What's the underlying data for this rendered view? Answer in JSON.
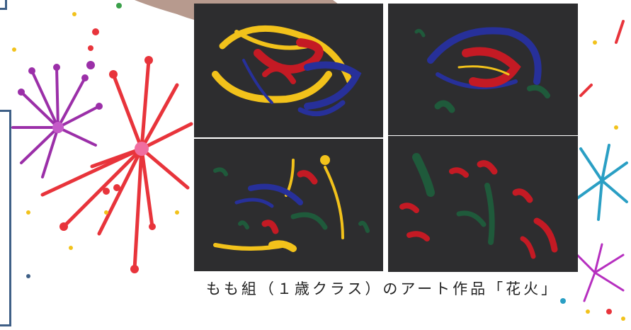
{
  "caption": "もも組（１歳クラス）のアート作品「花火」",
  "colors": {
    "frame": "#3e5f86",
    "paper": "#2d2d2f",
    "paint_yellow": "#f2c21b",
    "paint_red": "#c41a24",
    "paint_blue": "#27309a",
    "paint_green": "#1f5a3b"
  },
  "photos": [
    {
      "name": "artwork-photo-1"
    },
    {
      "name": "artwork-photo-2"
    },
    {
      "name": "artwork-photo-3"
    },
    {
      "name": "artwork-photo-4"
    }
  ],
  "decorations": [
    "fireworks-illustration-left",
    "fireworks-illustration-right",
    "brush-stroke-shape"
  ]
}
